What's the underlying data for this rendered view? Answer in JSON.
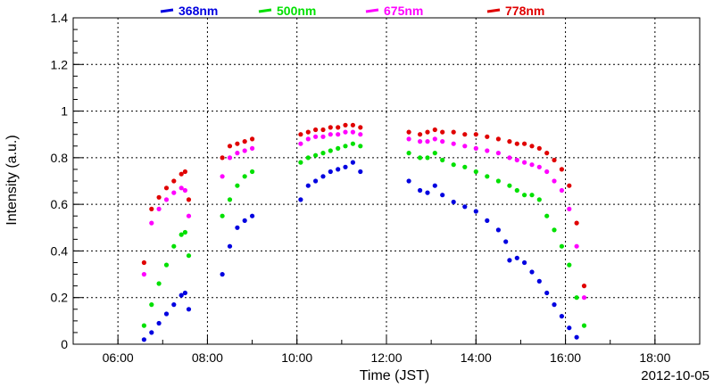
{
  "chart_data": {
    "type": "scatter",
    "xlabel": "Time (JST)",
    "ylabel": "Intensity (a.u.)",
    "date_label": "2012-10-05",
    "xlim": [
      "05:00",
      "19:00"
    ],
    "ylim": [
      0,
      1.4
    ],
    "x_ticks": [
      "06:00",
      "08:00",
      "10:00",
      "12:00",
      "14:00",
      "16:00",
      "18:00"
    ],
    "y_ticks": [
      "0",
      "0.2",
      "0.4",
      "0.6",
      "0.8",
      "1",
      "1.2",
      "1.4"
    ],
    "grid": true,
    "legend_position": "top",
    "series": [
      {
        "name": "368nm",
        "color": "#0000e0",
        "points": [
          [
            "06:35",
            0.02
          ],
          [
            "06:45",
            0.05
          ],
          [
            "06:55",
            0.09
          ],
          [
            "07:05",
            0.13
          ],
          [
            "07:15",
            0.17
          ],
          [
            "07:25",
            0.21
          ],
          [
            "07:30",
            0.22
          ],
          [
            "07:35",
            0.15
          ],
          [
            "08:20",
            0.3
          ],
          [
            "08:30",
            0.42
          ],
          [
            "08:40",
            0.5
          ],
          [
            "08:50",
            0.53
          ],
          [
            "09:00",
            0.55
          ],
          [
            "10:05",
            0.62
          ],
          [
            "10:15",
            0.68
          ],
          [
            "10:25",
            0.7
          ],
          [
            "10:35",
            0.72
          ],
          [
            "10:45",
            0.74
          ],
          [
            "10:55",
            0.75
          ],
          [
            "11:05",
            0.76
          ],
          [
            "11:15",
            0.78
          ],
          [
            "11:25",
            0.74
          ],
          [
            "12:30",
            0.7
          ],
          [
            "12:45",
            0.66
          ],
          [
            "12:55",
            0.65
          ],
          [
            "13:05",
            0.68
          ],
          [
            "13:15",
            0.64
          ],
          [
            "13:30",
            0.61
          ],
          [
            "13:45",
            0.59
          ],
          [
            "14:00",
            0.57
          ],
          [
            "14:15",
            0.53
          ],
          [
            "14:30",
            0.49
          ],
          [
            "14:40",
            0.44
          ],
          [
            "14:45",
            0.36
          ],
          [
            "14:55",
            0.37
          ],
          [
            "15:05",
            0.35
          ],
          [
            "15:15",
            0.31
          ],
          [
            "15:25",
            0.27
          ],
          [
            "15:35",
            0.22
          ],
          [
            "15:45",
            0.17
          ],
          [
            "15:55",
            0.12
          ],
          [
            "16:05",
            0.07
          ],
          [
            "16:15",
            0.03
          ]
        ]
      },
      {
        "name": "500nm",
        "color": "#00e000",
        "points": [
          [
            "06:35",
            0.08
          ],
          [
            "06:45",
            0.17
          ],
          [
            "06:55",
            0.26
          ],
          [
            "07:05",
            0.34
          ],
          [
            "07:15",
            0.42
          ],
          [
            "07:25",
            0.47
          ],
          [
            "07:30",
            0.48
          ],
          [
            "07:35",
            0.38
          ],
          [
            "08:20",
            0.55
          ],
          [
            "08:30",
            0.62
          ],
          [
            "08:40",
            0.68
          ],
          [
            "08:50",
            0.72
          ],
          [
            "09:00",
            0.74
          ],
          [
            "10:05",
            0.78
          ],
          [
            "10:15",
            0.8
          ],
          [
            "10:25",
            0.81
          ],
          [
            "10:35",
            0.82
          ],
          [
            "10:45",
            0.83
          ],
          [
            "10:55",
            0.84
          ],
          [
            "11:05",
            0.85
          ],
          [
            "11:15",
            0.86
          ],
          [
            "11:25",
            0.85
          ],
          [
            "12:30",
            0.82
          ],
          [
            "12:45",
            0.8
          ],
          [
            "12:55",
            0.8
          ],
          [
            "13:05",
            0.82
          ],
          [
            "13:15",
            0.79
          ],
          [
            "13:30",
            0.77
          ],
          [
            "13:45",
            0.76
          ],
          [
            "14:00",
            0.74
          ],
          [
            "14:15",
            0.72
          ],
          [
            "14:30",
            0.7
          ],
          [
            "14:45",
            0.68
          ],
          [
            "14:55",
            0.66
          ],
          [
            "15:05",
            0.64
          ],
          [
            "15:15",
            0.64
          ],
          [
            "15:25",
            0.62
          ],
          [
            "15:35",
            0.55
          ],
          [
            "15:45",
            0.49
          ],
          [
            "15:55",
            0.42
          ],
          [
            "16:05",
            0.34
          ],
          [
            "16:15",
            0.2
          ],
          [
            "16:25",
            0.08
          ]
        ]
      },
      {
        "name": "675nm",
        "color": "#ff00ff",
        "points": [
          [
            "06:35",
            0.3
          ],
          [
            "06:45",
            0.52
          ],
          [
            "06:55",
            0.58
          ],
          [
            "07:05",
            0.62
          ],
          [
            "07:15",
            0.65
          ],
          [
            "07:25",
            0.67
          ],
          [
            "07:30",
            0.66
          ],
          [
            "07:35",
            0.55
          ],
          [
            "08:20",
            0.72
          ],
          [
            "08:30",
            0.8
          ],
          [
            "08:40",
            0.82
          ],
          [
            "08:50",
            0.83
          ],
          [
            "09:00",
            0.84
          ],
          [
            "10:05",
            0.86
          ],
          [
            "10:15",
            0.88
          ],
          [
            "10:25",
            0.89
          ],
          [
            "10:35",
            0.89
          ],
          [
            "10:45",
            0.9
          ],
          [
            "10:55",
            0.9
          ],
          [
            "11:05",
            0.91
          ],
          [
            "11:15",
            0.91
          ],
          [
            "11:25",
            0.9
          ],
          [
            "12:30",
            0.88
          ],
          [
            "12:45",
            0.87
          ],
          [
            "12:55",
            0.87
          ],
          [
            "13:05",
            0.88
          ],
          [
            "13:15",
            0.87
          ],
          [
            "13:30",
            0.86
          ],
          [
            "13:45",
            0.85
          ],
          [
            "14:00",
            0.84
          ],
          [
            "14:15",
            0.83
          ],
          [
            "14:30",
            0.82
          ],
          [
            "14:45",
            0.8
          ],
          [
            "14:55",
            0.79
          ],
          [
            "15:05",
            0.78
          ],
          [
            "15:15",
            0.77
          ],
          [
            "15:25",
            0.76
          ],
          [
            "15:35",
            0.74
          ],
          [
            "15:45",
            0.7
          ],
          [
            "15:55",
            0.66
          ],
          [
            "16:05",
            0.58
          ],
          [
            "16:15",
            0.42
          ],
          [
            "16:25",
            0.2
          ]
        ]
      },
      {
        "name": "778nm",
        "color": "#e00000",
        "points": [
          [
            "06:35",
            0.35
          ],
          [
            "06:45",
            0.58
          ],
          [
            "06:55",
            0.63
          ],
          [
            "07:05",
            0.67
          ],
          [
            "07:15",
            0.7
          ],
          [
            "07:25",
            0.73
          ],
          [
            "07:30",
            0.74
          ],
          [
            "07:35",
            0.62
          ],
          [
            "08:20",
            0.8
          ],
          [
            "08:30",
            0.85
          ],
          [
            "08:40",
            0.86
          ],
          [
            "08:50",
            0.87
          ],
          [
            "09:00",
            0.88
          ],
          [
            "10:05",
            0.9
          ],
          [
            "10:15",
            0.91
          ],
          [
            "10:25",
            0.92
          ],
          [
            "10:35",
            0.92
          ],
          [
            "10:45",
            0.93
          ],
          [
            "10:55",
            0.93
          ],
          [
            "11:05",
            0.94
          ],
          [
            "11:15",
            0.94
          ],
          [
            "11:25",
            0.93
          ],
          [
            "12:30",
            0.91
          ],
          [
            "12:45",
            0.9
          ],
          [
            "12:55",
            0.91
          ],
          [
            "13:05",
            0.92
          ],
          [
            "13:15",
            0.91
          ],
          [
            "13:30",
            0.91
          ],
          [
            "13:45",
            0.9
          ],
          [
            "14:00",
            0.9
          ],
          [
            "14:15",
            0.89
          ],
          [
            "14:30",
            0.88
          ],
          [
            "14:45",
            0.87
          ],
          [
            "14:55",
            0.86
          ],
          [
            "15:05",
            0.86
          ],
          [
            "15:15",
            0.85
          ],
          [
            "15:25",
            0.84
          ],
          [
            "15:35",
            0.82
          ],
          [
            "15:45",
            0.79
          ],
          [
            "15:55",
            0.75
          ],
          [
            "16:05",
            0.68
          ],
          [
            "16:15",
            0.52
          ],
          [
            "16:25",
            0.25
          ]
        ]
      }
    ]
  }
}
